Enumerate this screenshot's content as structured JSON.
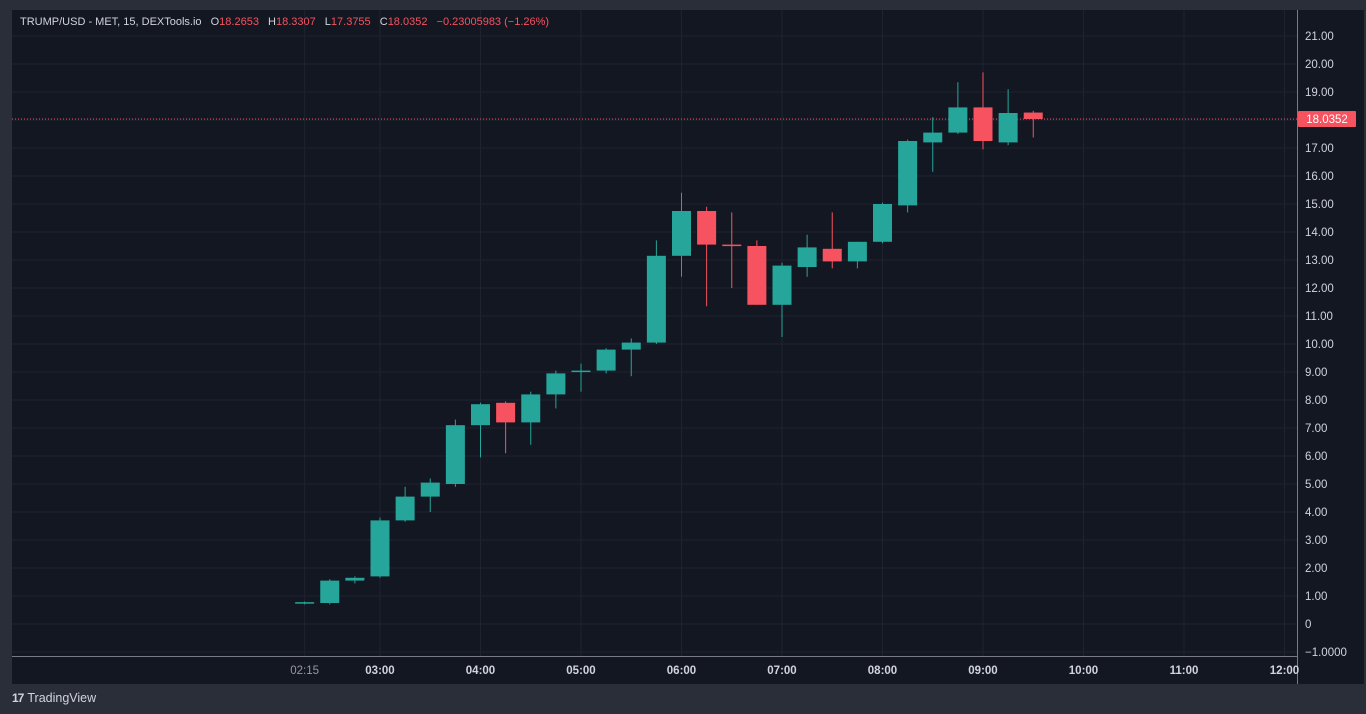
{
  "legend": {
    "symbol": "TRUMP/USD - MET, 15, DEXTools.io",
    "o_label": "O",
    "o_value": "18.2653",
    "h_label": "H",
    "h_value": "18.3307",
    "l_label": "L",
    "l_value": "17.3755",
    "c_label": "C",
    "c_value": "18.0352",
    "change": "−0.23005983 (−1.26%)"
  },
  "branding": {
    "logo": "17",
    "name": "TradingView"
  },
  "colors": {
    "up": "#26a69a",
    "down": "#f7525f",
    "background": "#131722",
    "grid": "#1f2330",
    "text": "#d1d4dc",
    "price_line": "#f7525f"
  },
  "chart_data": {
    "type": "candlestick",
    "interval": "15",
    "x_tick_labels": [
      "02:15",
      "03:00",
      "04:00",
      "05:00",
      "06:00",
      "07:00",
      "08:00",
      "09:00",
      "10:00",
      "11:00",
      "12:00"
    ],
    "y_tick_labels": [
      "21.00",
      "20.00",
      "19.00",
      "18.00",
      "17.00",
      "16.00",
      "15.00",
      "14.00",
      "13.00",
      "12.00",
      "11.00",
      "10.00",
      "9.00",
      "8.00",
      "7.00",
      "6.00",
      "5.00",
      "4.00",
      "3.00",
      "2.00",
      "1.00",
      "0",
      "−1.0000"
    ],
    "ylim": [
      -1,
      21.7
    ],
    "xlim": [
      "02:00",
      "12:15"
    ],
    "grid": true,
    "last_price_label": "18.0352",
    "last_price": 18.0352,
    "candles": [
      {
        "t": "02:15",
        "o": 0.75,
        "h": 0.8,
        "l": 0.7,
        "c": 0.78
      },
      {
        "t": "02:30",
        "o": 0.75,
        "h": 1.6,
        "l": 0.7,
        "c": 1.55
      },
      {
        "t": "02:45",
        "o": 1.55,
        "h": 1.7,
        "l": 1.45,
        "c": 1.65
      },
      {
        "t": "03:00",
        "o": 1.7,
        "h": 3.8,
        "l": 1.65,
        "c": 3.7
      },
      {
        "t": "03:15",
        "o": 3.7,
        "h": 4.9,
        "l": 3.65,
        "c": 4.55
      },
      {
        "t": "03:30",
        "o": 4.55,
        "h": 5.2,
        "l": 4.0,
        "c": 5.05
      },
      {
        "t": "03:45",
        "o": 5.0,
        "h": 7.3,
        "l": 4.9,
        "c": 7.1
      },
      {
        "t": "04:00",
        "o": 7.1,
        "h": 7.9,
        "l": 5.95,
        "c": 7.85
      },
      {
        "t": "04:15",
        "o": 7.9,
        "h": 7.95,
        "l": 6.1,
        "c": 7.2
      },
      {
        "t": "04:30",
        "o": 7.2,
        "h": 8.3,
        "l": 6.4,
        "c": 8.2
      },
      {
        "t": "04:45",
        "o": 8.2,
        "h": 9.05,
        "l": 7.7,
        "c": 8.95
      },
      {
        "t": "05:00",
        "o": 9.0,
        "h": 9.3,
        "l": 8.3,
        "c": 9.05
      },
      {
        "t": "05:15",
        "o": 9.05,
        "h": 9.85,
        "l": 8.95,
        "c": 9.8
      },
      {
        "t": "05:30",
        "o": 9.8,
        "h": 10.2,
        "l": 8.85,
        "c": 10.05
      },
      {
        "t": "05:45",
        "o": 10.05,
        "h": 13.7,
        "l": 10.0,
        "c": 13.15
      },
      {
        "t": "06:00",
        "o": 13.15,
        "h": 15.4,
        "l": 12.4,
        "c": 14.75
      },
      {
        "t": "06:15",
        "o": 14.75,
        "h": 14.9,
        "l": 11.35,
        "c": 13.55
      },
      {
        "t": "06:30",
        "o": 13.55,
        "h": 14.7,
        "l": 12.0,
        "c": 13.5
      },
      {
        "t": "06:45",
        "o": 13.5,
        "h": 13.7,
        "l": 11.4,
        "c": 11.4
      },
      {
        "t": "07:00",
        "o": 11.4,
        "h": 12.9,
        "l": 10.25,
        "c": 12.8
      },
      {
        "t": "07:15",
        "o": 12.75,
        "h": 13.9,
        "l": 12.4,
        "c": 13.45
      },
      {
        "t": "07:30",
        "o": 13.4,
        "h": 14.7,
        "l": 12.7,
        "c": 12.95
      },
      {
        "t": "07:45",
        "o": 12.95,
        "h": 13.65,
        "l": 12.7,
        "c": 13.65
      },
      {
        "t": "08:00",
        "o": 13.65,
        "h": 15.05,
        "l": 13.6,
        "c": 15.0
      },
      {
        "t": "08:15",
        "o": 14.95,
        "h": 17.3,
        "l": 14.7,
        "c": 17.25
      },
      {
        "t": "08:30",
        "o": 17.2,
        "h": 18.1,
        "l": 16.15,
        "c": 17.55
      },
      {
        "t": "08:45",
        "o": 17.55,
        "h": 19.35,
        "l": 17.5,
        "c": 18.45
      },
      {
        "t": "09:00",
        "o": 18.45,
        "h": 19.7,
        "l": 16.95,
        "c": 17.25
      },
      {
        "t": "09:15",
        "o": 17.2,
        "h": 19.1,
        "l": 17.1,
        "c": 18.25
      },
      {
        "t": "09:30",
        "o": 18.2653,
        "h": 18.3307,
        "l": 17.3755,
        "c": 18.0352
      }
    ]
  }
}
